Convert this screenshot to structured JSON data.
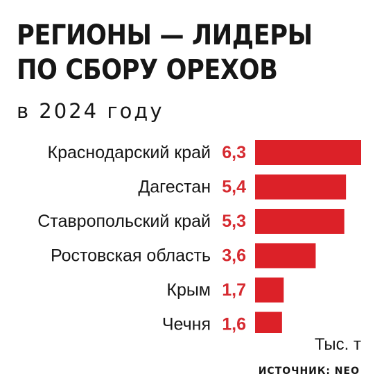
{
  "header": {
    "title_line1": "РЕГИОНЫ — ЛИДЕРЫ",
    "title_line2": "ПО СБОРУ ОРЕХОВ",
    "subtitle": "в 2024 году"
  },
  "footer": {
    "unit": "Тыс. т",
    "source": "ИСТОЧНИК: NEO"
  },
  "colors": {
    "bar": "#dc2128",
    "value_text": "#d62a30",
    "text": "#161616"
  },
  "chart_data": {
    "type": "bar",
    "orientation": "horizontal",
    "categories": [
      "Краснодарский край",
      "Дагестан",
      "Ставропольский край",
      "Ростовская область",
      "Крым",
      "Чечня"
    ],
    "values": [
      6.3,
      5.4,
      5.3,
      3.6,
      1.7,
      1.6
    ],
    "value_labels": [
      "6,3",
      "5,4",
      "5,3",
      "3,6",
      "1,7",
      "1,6"
    ],
    "unit": "Тыс. т",
    "xlim": [
      0,
      6.3
    ],
    "grid": false,
    "legend": "none"
  }
}
